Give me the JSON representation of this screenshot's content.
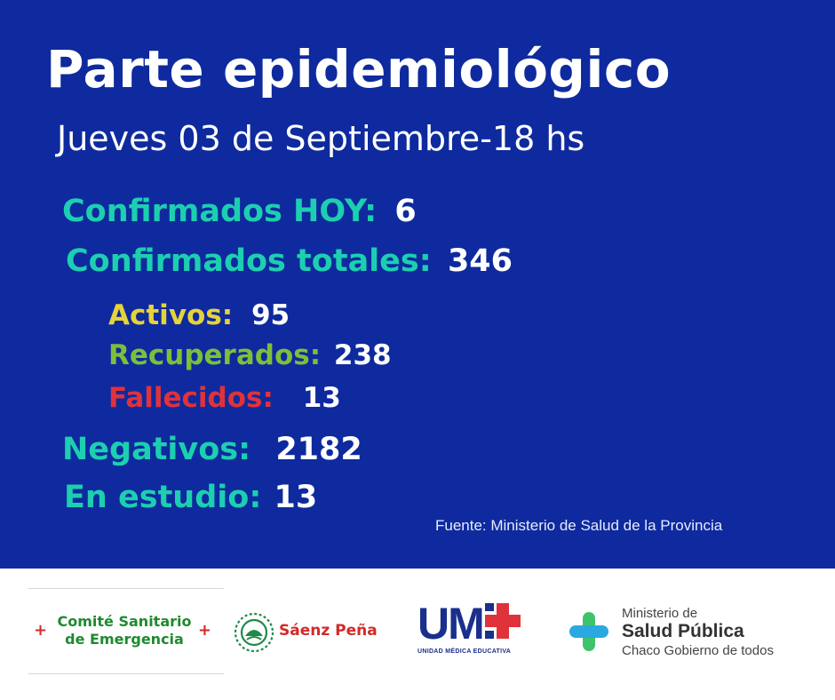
{
  "header": {
    "title": "Parte epidemiológico",
    "date": "Jueves 03 de Septiembre-18 hs"
  },
  "stats": {
    "confirmados_hoy": {
      "label": "Confirmados HOY:",
      "value": "6",
      "color": "#1ccfb0"
    },
    "confirmados_totales": {
      "label": "Confirmados totales:",
      "value": "346",
      "color": "#1ccfb0"
    },
    "activos": {
      "label": "Activos:",
      "value": "95",
      "color": "#e6d23a"
    },
    "recuperados": {
      "label": "Recuperados:",
      "value": "238",
      "color": "#7cbf3a"
    },
    "fallecidos": {
      "label": "Fallecidos:",
      "value": "13",
      "color": "#e0323a"
    },
    "negativos": {
      "label": "Negativos:",
      "value": "2182",
      "color": "#1ccfb0"
    },
    "en_estudio": {
      "label": "En estudio:",
      "value": "13",
      "color": "#1ccfb0"
    }
  },
  "source": "Fuente: Ministerio de Salud de la Provincia",
  "footer": {
    "comite_line1": "Comité Sanitario",
    "comite_line2": "de Emergencia",
    "saenz_pena": "Sáenz Peña",
    "ume": "UM",
    "ume_subtitle": "UNIDAD MÉDICA EDUCATIVA",
    "ministerio_line1": "Ministerio de",
    "ministerio_line2": "Salud Pública",
    "ministerio_line3": "Chaco Gobierno de todos"
  },
  "colors": {
    "background": "#0e2a9e",
    "teal": "#1ccfb0",
    "yellow": "#e6d23a",
    "green": "#7cbf3a",
    "red": "#e0323a"
  }
}
